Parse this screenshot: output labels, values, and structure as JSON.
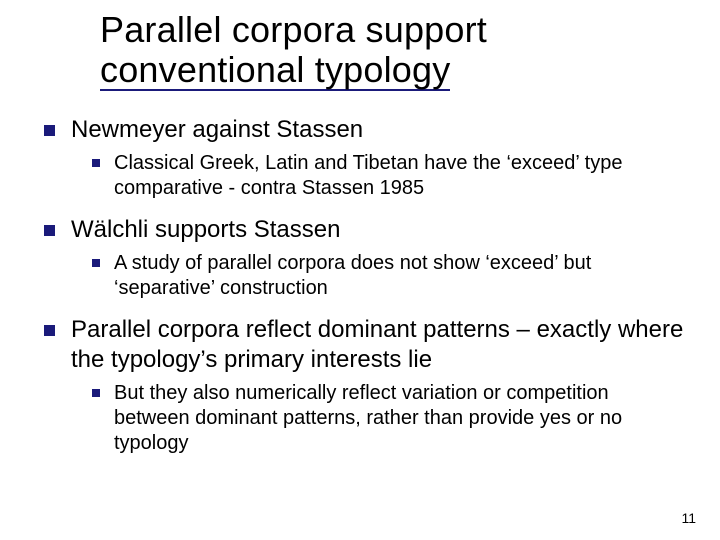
{
  "title_line1": "Parallel corpora support",
  "title_line2": "conventional typology",
  "colors": {
    "accent": "#1a1a7a",
    "text": "#000000",
    "background": "#ffffff"
  },
  "typography": {
    "title_fontsize": 36,
    "lvl1_fontsize": 24,
    "lvl2_fontsize": 20,
    "pagenum_fontsize": 14,
    "font_family": "Verdana"
  },
  "items": [
    {
      "text": "Newmeyer against Stassen",
      "sub": [
        "Classical Greek, Latin and Tibetan have the ‘exceed’ type comparative - contra Stassen 1985"
      ]
    },
    {
      "text": "Wälchli supports Stassen",
      "sub": [
        "A study of parallel corpora does not show ‘exceed’ but ‘separative’ construction"
      ]
    },
    {
      "text": "Parallel corpora reflect dominant patterns – exactly where the typology’s primary interests lie",
      "sub": [
        "But they also numerically reflect variation or competition between dominant patterns, rather than provide yes or no typology"
      ]
    }
  ],
  "page_number": "11"
}
